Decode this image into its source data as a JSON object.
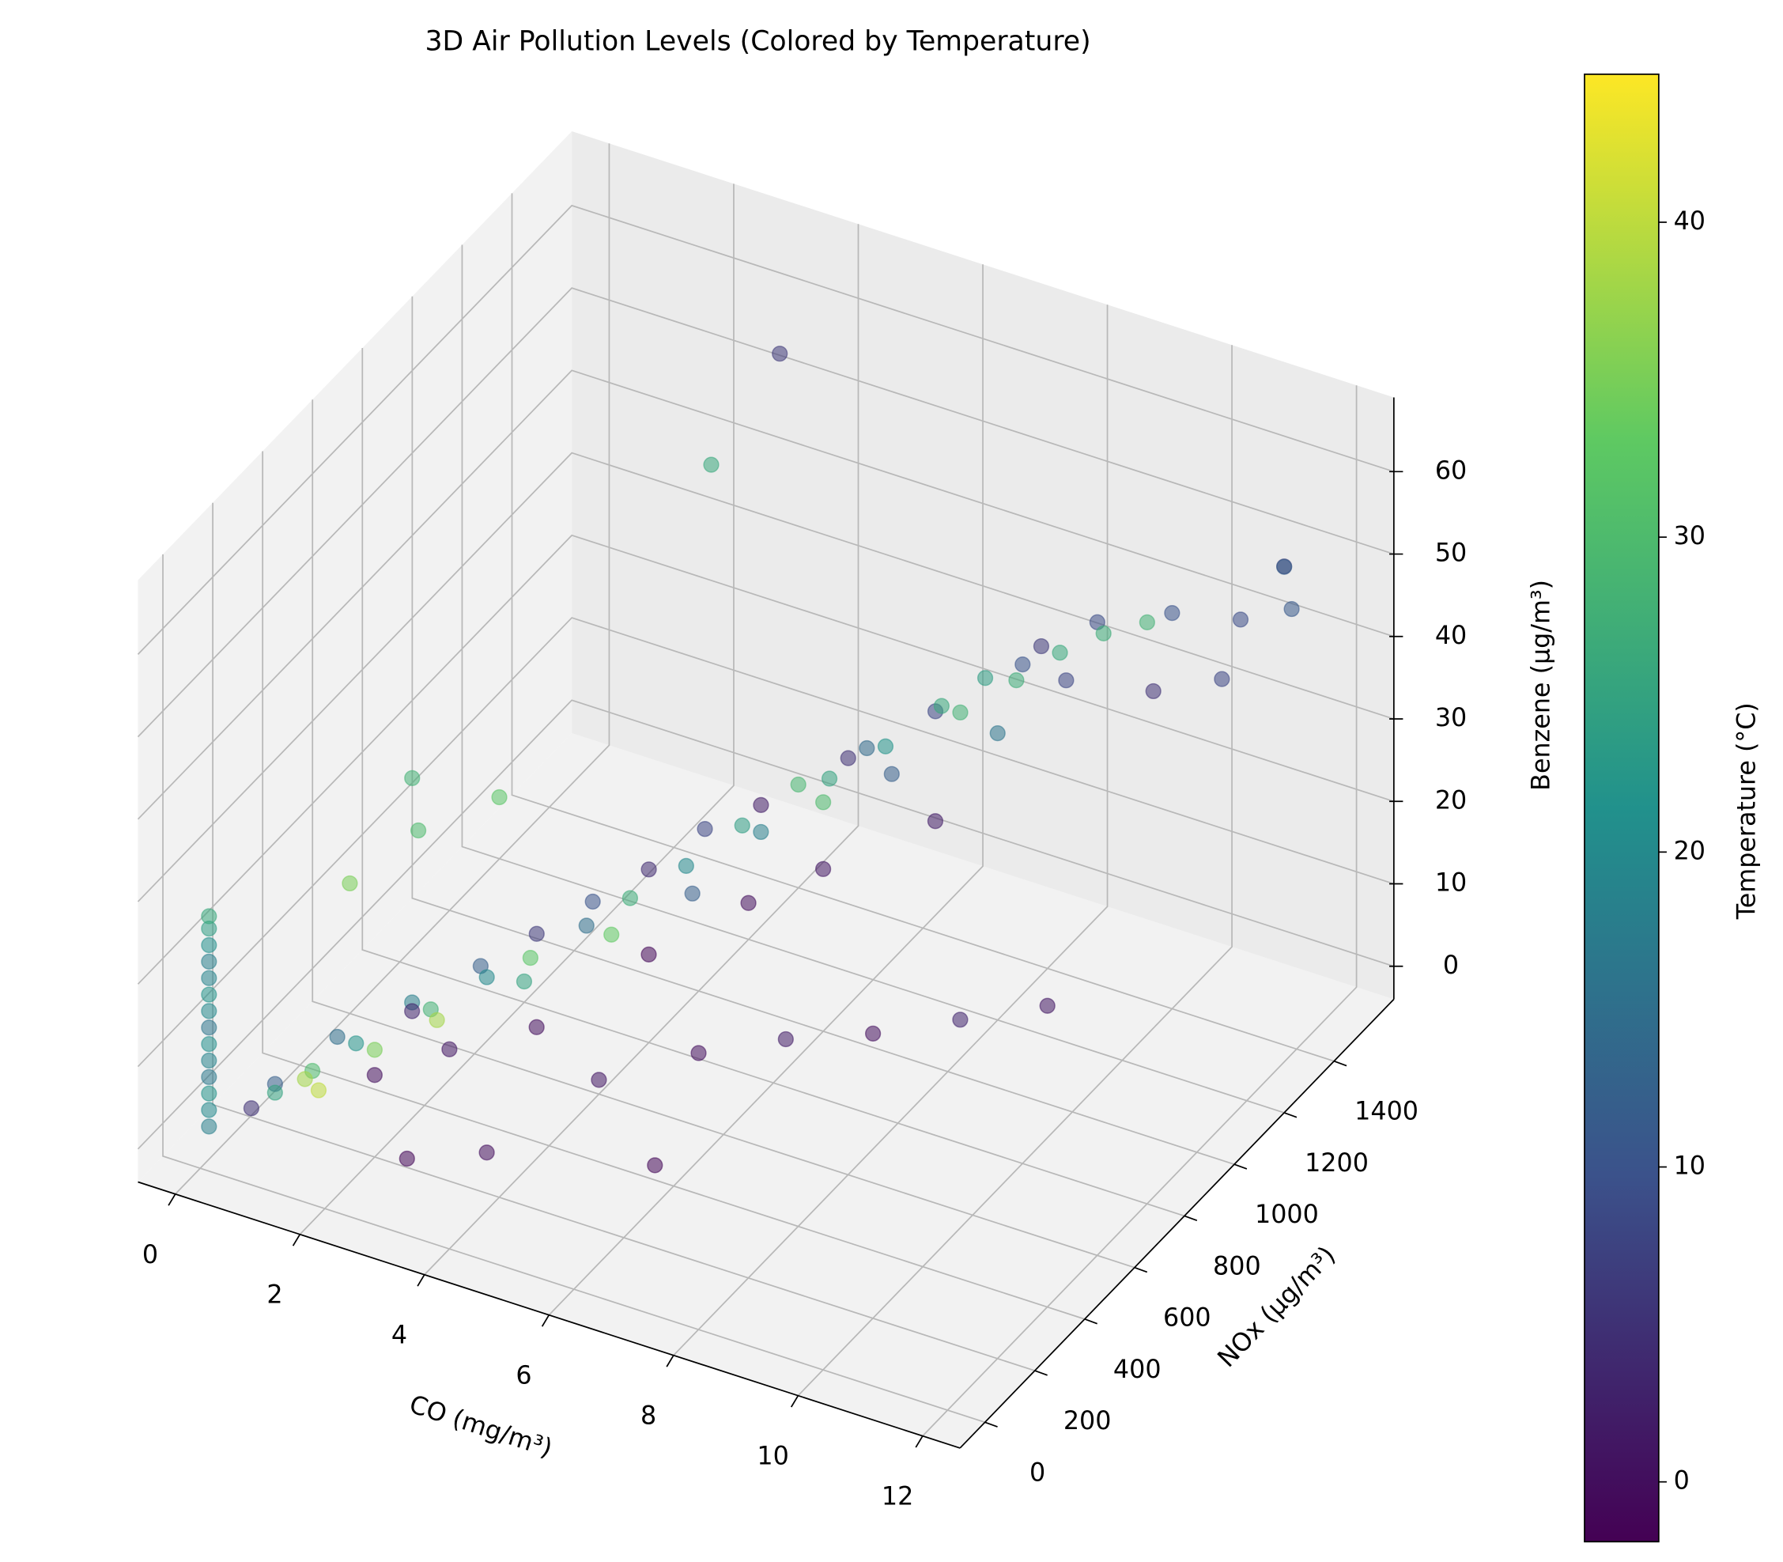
{
  "chart_data": {
    "type": "scatter3d",
    "title": "3D Air Pollution Levels (Colored by Temperature)",
    "xlabel": "CO (mg/m³)",
    "ylabel": "NOx (µg/m³)",
    "zlabel": "Benzene (µg/m³)",
    "colorbar_label": "Temperature (°C)",
    "colormap": "viridis",
    "alpha": 0.55,
    "grid": true,
    "xlim": [
      -0.6,
      12.6
    ],
    "ylim": [
      -100,
      1640
    ],
    "zlim": [
      -4,
      69
    ],
    "clim": [
      -1.9,
      44.7
    ],
    "xticks": [
      0,
      2,
      4,
      6,
      8,
      10,
      12
    ],
    "yticks": [
      0,
      200,
      400,
      600,
      800,
      1000,
      1200,
      1400
    ],
    "zticks": [
      0,
      10,
      20,
      30,
      40,
      50,
      60
    ],
    "cticks": [
      0,
      10,
      20,
      30,
      40
    ],
    "x": [
      0.1,
      0.1,
      0.1,
      0.1,
      0.1,
      0.1,
      0.1,
      0.1,
      0.1,
      0.1,
      0.1,
      0.1,
      0.1,
      0.1,
      0.5,
      0.6,
      0.8,
      1.0,
      1.2,
      1.0,
      1.5,
      1.5,
      1.8,
      2.0,
      2.0,
      2.2,
      2.5,
      2.5,
      2.8,
      3.0,
      3.0,
      3.2,
      3.5,
      3.5,
      3.8,
      4.0,
      4.0,
      4.2,
      4.5,
      4.5,
      4.8,
      5.0,
      5.0,
      5.2,
      5.5,
      5.5,
      5.8,
      6.0,
      6.0,
      6.2,
      6.5,
      6.5,
      6.8,
      7.0,
      7.0,
      7.2,
      7.5,
      7.5,
      7.8,
      8.0,
      8.0,
      8.2,
      8.5,
      8.5,
      8.8,
      9.0,
      9.0,
      9.5,
      9.5,
      10.0,
      10.0,
      10.5,
      11.0,
      11.5,
      11.6,
      11.8,
      12.0,
      5.0,
      6.0,
      7.0,
      8.0,
      9.0,
      10.0,
      6.5,
      4.0,
      3.0,
      1.5,
      1.0,
      2.0,
      0.8,
      3.5,
      3.0
    ],
    "y": [
      10,
      10,
      10,
      10,
      10,
      10,
      10,
      10,
      10,
      10,
      10,
      10,
      10,
      10,
      80,
      150,
      100,
      200,
      120,
      300,
      250,
      100,
      400,
      200,
      350,
      150,
      300,
      500,
      250,
      400,
      600,
      200,
      450,
      700,
      350,
      550,
      800,
      300,
      600,
      900,
      450,
      700,
      1000,
      500,
      800,
      600,
      950,
      750,
      1100,
      650,
      900,
      1050,
      800,
      1000,
      1200,
      700,
      1100,
      900,
      1200,
      1050,
      1300,
      900,
      1150,
      1250,
      1000,
      1200,
      1350,
      1250,
      1100,
      1300,
      1400,
      1200,
      1350,
      1300,
      1450,
      1400,
      1380,
      350,
      500,
      600,
      700,
      800,
      900,
      200,
      150,
      80,
      500,
      600,
      700,
      400,
      1450,
      1300
    ],
    "z": [
      1,
      3,
      5,
      7,
      9,
      11,
      13,
      15,
      17,
      19,
      21,
      23,
      25,
      26.5,
      2,
      3,
      4,
      4,
      6,
      5,
      7,
      6,
      8,
      9,
      9,
      8,
      12,
      11,
      13,
      14,
      13,
      12,
      16,
      15,
      17,
      18,
      17,
      14,
      21,
      20,
      22,
      23,
      21,
      19,
      26,
      24,
      27,
      28,
      26,
      23,
      31,
      30,
      32,
      33,
      31,
      28,
      36,
      34,
      37,
      38,
      36,
      30,
      40,
      41,
      39,
      43,
      42,
      45,
      44,
      46,
      44,
      42,
      40,
      50,
      52,
      54,
      50,
      8,
      9,
      10,
      10,
      11,
      12,
      6,
      3,
      2,
      25,
      27,
      24,
      20,
      58,
      48
    ],
    "c": [
      18,
      20,
      22,
      17,
      19,
      21,
      16,
      20,
      22,
      19,
      18,
      21,
      24,
      26,
      5,
      12,
      25,
      30,
      38,
      15,
      22,
      40,
      18,
      35,
      3,
      0,
      28,
      12,
      38,
      20,
      6,
      1,
      32,
      10,
      25,
      15,
      4,
      0,
      27,
      8,
      33,
      20,
      2,
      -1,
      24,
      12,
      29,
      18,
      5,
      0,
      25,
      14,
      30,
      22,
      8,
      1,
      26,
      12,
      24,
      28,
      10,
      2,
      27,
      6,
      16,
      26,
      9,
      27,
      8,
      28,
      10,
      5,
      8,
      9,
      6,
      12,
      11,
      1,
      0,
      2,
      0,
      3,
      1,
      -1,
      0,
      -1,
      30,
      28,
      32,
      35,
      6,
      26
    ]
  }
}
